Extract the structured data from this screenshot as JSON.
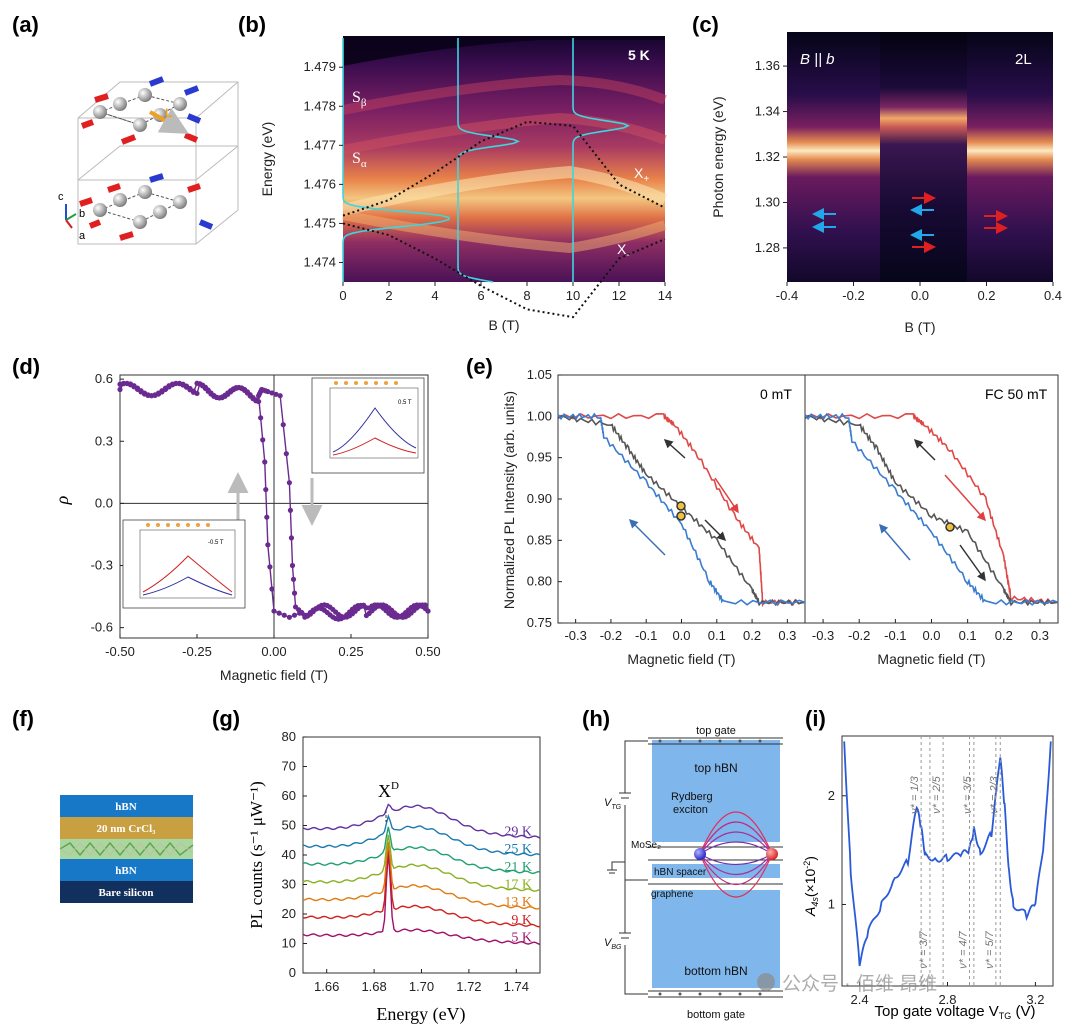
{
  "panel_labels": [
    "(a)",
    "(b)",
    "(c)",
    "(d)",
    "(e)",
    "(f)",
    "(g)",
    "(h)",
    "(i)"
  ],
  "panel_a": {
    "axes": [
      "c",
      "b",
      "a"
    ],
    "vector_label": "L"
  },
  "panel_b": {
    "corner_label": "5 K",
    "annotations": {
      "s_beta_main": "S",
      "s_beta_sub": "β",
      "s_alpha_main": "S",
      "s_alpha_sub": "α",
      "x_plus_main": "X",
      "x_plus_sub": "+",
      "x_minus_main": "X",
      "x_minus_sub": "-"
    }
  },
  "panel_c": {
    "field_main": "B || b",
    "layer_label": "2L"
  },
  "panel_d": {
    "inset_top_field": "0.5 T",
    "inset_bottom_field": "-0.5 T"
  },
  "panel_e": {
    "left_title": "0 mT",
    "right_title": "FC 50 mT"
  },
  "panel_f": {
    "layers": [
      "hBN",
      "20 nm CrCl₃",
      "hBN",
      "Bare silicon"
    ]
  },
  "panel_g": {
    "peak_label": "X",
    "peak_sup": "D"
  },
  "panel_h": {
    "labels": {
      "top_gate": "top gate",
      "top_hbn": "top hBN",
      "rydberg1": "Rydberg",
      "rydberg2": "exciton",
      "mose2": "MoSe₂",
      "hbn_spacer": "hBN spacer",
      "graphene": "graphene",
      "bottom_hbn": "bottom hBN",
      "bottom_gate": "bottom gate",
      "vtg_main": "V",
      "vtg_sub": "TG",
      "vbg_main": "V",
      "vbg_sub": "BG"
    }
  },
  "panel_i": {
    "ylabel_main": "A",
    "ylabel_sub": "4s",
    "ylabel_unit": "(×10",
    "xlabel": "Top gate voltage V",
    "xlabel_sub": "TG",
    "xlabel_unit": " (V)",
    "filling_labels": [
      "ν* = 1/3",
      "ν* = 2/5",
      "ν* = 3/5",
      "ν* = 2/3",
      "ν* = 3/7",
      "ν* = 4/7",
      "ν* = 5/7"
    ]
  },
  "watermark": "公众号 · 佰维 昂维",
  "chart_data": [
    {
      "panel": "b",
      "type": "heatmap",
      "xlabel": "B (T)",
      "ylabel": "Energy (eV)",
      "xlim": [
        0,
        14
      ],
      "ylim": [
        1.4735,
        1.4798
      ],
      "xticks": [
        0,
        2,
        4,
        6,
        8,
        10,
        12,
        14
      ],
      "yticks": [
        1.474,
        1.475,
        1.476,
        1.477,
        1.478,
        1.479
      ],
      "series": [
        {
          "name": "X+",
          "x": [
            0,
            2,
            4,
            6,
            8,
            10,
            12,
            14
          ],
          "values": [
            1.4752,
            1.4756,
            1.4763,
            1.4772,
            1.4778,
            1.4776,
            1.4759,
            1.4754
          ]
        },
        {
          "name": "X-",
          "x": [
            0,
            2,
            4,
            6,
            8,
            10,
            12,
            14
          ],
          "values": [
            1.475,
            1.4747,
            1.444,
            1.4734,
            1.4727,
            1.4726,
            1.4742,
            1.4746
          ]
        }
      ]
    },
    {
      "panel": "c",
      "type": "heatmap",
      "xlabel": "B (T)",
      "ylabel": "Photon energy (eV)",
      "xlim": [
        -0.4,
        0.4
      ],
      "ylim": [
        1.265,
        1.375
      ],
      "xticks": [
        -0.4,
        -0.2,
        0,
        0.2,
        0.4
      ],
      "yticks": [
        1.28,
        1.3,
        1.32,
        1.34,
        1.36
      ],
      "series": [
        {
          "name": "emission |B|>0.13",
          "x": [
            -0.4,
            -0.13,
            0.13,
            0.4
          ],
          "values": [
            1.32,
            1.32,
            1.32,
            1.32
          ]
        },
        {
          "name": "emission |B|<0.13",
          "x": [
            -0.13,
            0.13
          ],
          "values": [
            1.34,
            1.34
          ]
        }
      ]
    },
    {
      "panel": "d",
      "type": "line",
      "xlabel": "Magnetic field (T)",
      "ylabel": "ρ",
      "xlim": [
        -0.5,
        0.5
      ],
      "ylim": [
        -0.65,
        0.62
      ],
      "xticks": [
        -0.5,
        -0.25,
        0,
        0.25,
        0.5
      ],
      "yticks": [
        0.6,
        0.3,
        0,
        -0.3,
        -0.6
      ],
      "series": [
        {
          "name": "sweep down",
          "x": [
            0.5,
            0.3,
            0.1,
            0.07,
            0.06,
            0.05,
            0.02,
            -0.02,
            -0.04,
            -0.05,
            -0.25,
            -0.5
          ],
          "values": [
            -0.52,
            -0.52,
            -0.54,
            -0.5,
            -0.3,
            0.1,
            0.52,
            0.54,
            0.55,
            0.52,
            0.55,
            0.55
          ]
        },
        {
          "name": "sweep up",
          "x": [
            -0.5,
            -0.25,
            -0.05,
            -0.03,
            -0.02,
            0.0,
            0.05,
            0.1,
            0.3,
            0.5
          ],
          "values": [
            0.55,
            0.55,
            0.52,
            0.2,
            -0.2,
            -0.52,
            -0.55,
            -0.52,
            -0.52,
            -0.52
          ]
        }
      ]
    },
    {
      "panel": "e-left",
      "type": "line",
      "title": "0 mT",
      "xlabel": "Magnetic field (T)",
      "ylabel": "Normalized PL Intensity (arb. units)",
      "xlim": [
        -0.35,
        0.35
      ],
      "ylim": [
        0.75,
        1.05
      ],
      "xticks": [
        -0.3,
        -0.2,
        -0.1,
        0,
        0.1,
        0.2,
        0.3
      ],
      "yticks": [
        0.75,
        0.8,
        0.85,
        0.9,
        0.95,
        1.0,
        1.05
      ],
      "series": [
        {
          "name": "red",
          "x": [
            -0.35,
            -0.05,
            -0.02,
            0.05,
            0.15,
            0.22,
            0.23,
            0.35
          ],
          "values": [
            1.0,
            1.0,
            0.99,
            0.95,
            0.88,
            0.84,
            0.775,
            0.775
          ]
        },
        {
          "name": "gray",
          "x": [
            -0.35,
            -0.2,
            -0.15,
            -0.1,
            0.0,
            0.1,
            0.2,
            0.22,
            0.35
          ],
          "values": [
            1.0,
            0.99,
            0.96,
            0.93,
            0.89,
            0.85,
            0.79,
            0.775,
            0.775
          ]
        },
        {
          "name": "blue",
          "x": [
            -0.35,
            -0.23,
            -0.22,
            -0.1,
            0.0,
            0.08,
            0.12,
            0.35
          ],
          "values": [
            1.0,
            1.0,
            0.975,
            0.92,
            0.87,
            0.8,
            0.775,
            0.775
          ]
        }
      ]
    },
    {
      "panel": "e-right",
      "type": "line",
      "title": "FC 50 mT",
      "xlabel": "Magnetic field (T)",
      "xlim": [
        -0.35,
        0.35
      ],
      "ylim": [
        0.75,
        1.05
      ],
      "xticks": [
        -0.3,
        -0.2,
        -0.1,
        0,
        0.1,
        0.2,
        0.3
      ],
      "series": [
        {
          "name": "red",
          "x": [
            -0.35,
            -0.05,
            -0.02,
            0.05,
            0.15,
            0.2,
            0.22,
            0.35
          ],
          "values": [
            1.0,
            1.0,
            0.99,
            0.96,
            0.9,
            0.83,
            0.78,
            0.775
          ]
        },
        {
          "name": "gray",
          "x": [
            -0.35,
            -0.2,
            -0.15,
            -0.1,
            0.0,
            0.1,
            0.2,
            0.22,
            0.35
          ],
          "values": [
            1.0,
            0.99,
            0.96,
            0.92,
            0.88,
            0.86,
            0.79,
            0.775,
            0.775
          ]
        },
        {
          "name": "blue",
          "x": [
            -0.35,
            -0.23,
            -0.22,
            -0.1,
            0.0,
            0.1,
            0.15,
            0.35
          ],
          "values": [
            1.0,
            1.0,
            0.97,
            0.91,
            0.86,
            0.8,
            0.775,
            0.775
          ]
        }
      ]
    },
    {
      "panel": "g",
      "type": "line",
      "xlabel": "Energy (eV)",
      "ylabel": "PL counts (s⁻¹ μW⁻¹)",
      "xlim": [
        1.65,
        1.75
      ],
      "ylim": [
        0,
        80
      ],
      "xticks": [
        1.66,
        1.68,
        1.7,
        1.72,
        1.74
      ],
      "yticks": [
        0,
        10,
        20,
        30,
        40,
        50,
        60,
        70,
        80
      ],
      "peak_x": 1.686,
      "series": [
        {
          "name": "5 K",
          "baseline": 10,
          "peak": 27,
          "hump": 3
        },
        {
          "name": "9 K",
          "baseline": 16,
          "peak": 22,
          "hump": 5
        },
        {
          "name": "13 K",
          "baseline": 22,
          "peak": 16,
          "hump": 6
        },
        {
          "name": "17 K",
          "baseline": 28,
          "peak": 12,
          "hump": 7
        },
        {
          "name": "21 K",
          "baseline": 34,
          "peak": 9,
          "hump": 7
        },
        {
          "name": "25 K",
          "baseline": 40,
          "peak": 6,
          "hump": 8
        },
        {
          "name": "29 K",
          "baseline": 46,
          "peak": 3,
          "hump": 9
        }
      ]
    },
    {
      "panel": "i",
      "type": "line",
      "xlabel": "Top gate voltage V_TG (V)",
      "ylabel": "A_4s (×10^-2)",
      "xlim": [
        2.32,
        3.28
      ],
      "ylim": [
        0.25,
        2.55
      ],
      "xticks": [
        2.4,
        2.8,
        3.2
      ],
      "yticks": [
        1,
        2
      ],
      "series": [
        {
          "name": "A4s",
          "x": [
            2.33,
            2.36,
            2.4,
            2.44,
            2.5,
            2.56,
            2.62,
            2.66,
            2.68,
            2.7,
            2.75,
            2.8,
            2.86,
            2.9,
            2.92,
            2.95,
            3.0,
            3.04,
            3.06,
            3.08,
            3.1,
            3.16,
            3.2,
            3.24,
            3.27
          ],
          "values": [
            2.5,
            1.3,
            0.45,
            0.75,
            1.0,
            1.25,
            1.4,
            1.9,
            1.7,
            1.45,
            1.42,
            1.43,
            1.45,
            1.5,
            1.7,
            1.48,
            1.65,
            2.35,
            1.9,
            1.3,
            1.0,
            0.9,
            1.0,
            1.6,
            2.5
          ]
        }
      ],
      "vlines_top": [
        2.68,
        2.78,
        2.92,
        3.04
      ],
      "vlines_bottom": [
        2.72,
        2.9,
        3.02
      ]
    }
  ]
}
